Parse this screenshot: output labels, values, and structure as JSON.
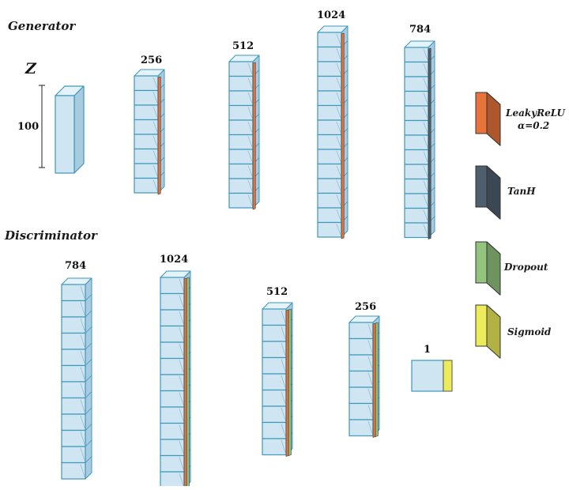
{
  "generator": {
    "title": "Generator",
    "input_symbol": "Z",
    "input_size": "100",
    "layers": [
      {
        "label": "256",
        "activation": "LeakyReLU"
      },
      {
        "label": "512",
        "activation": "LeakyReLU"
      },
      {
        "label": "1024",
        "activation": "LeakyReLU"
      },
      {
        "label": "784",
        "activation": "TanH"
      }
    ]
  },
  "discriminator": {
    "title": "Discriminator",
    "layers": [
      {
        "label": "784",
        "activation": "none"
      },
      {
        "label": "1024",
        "activation": "LeakyReLU+Dropout"
      },
      {
        "label": "512",
        "activation": "LeakyReLU+Dropout"
      },
      {
        "label": "256",
        "activation": "LeakyReLU+Dropout"
      },
      {
        "label": "1",
        "activation": "Sigmoid"
      }
    ]
  },
  "legend": [
    {
      "key": "leakyrelu",
      "label": "LeakyReLU",
      "sublabel": "α=0.2",
      "color": "#e8743b"
    },
    {
      "key": "tanh",
      "label": "TanH",
      "color": "#4f5f6e"
    },
    {
      "key": "dropout",
      "label": "Dropout",
      "color": "#93c47d"
    },
    {
      "key": "sigmoid",
      "label": "Sigmoid",
      "color": "#ecec5a"
    }
  ],
  "colors": {
    "block_face": "#cfe6f2",
    "block_side": "#a9cbe0",
    "block_top": "#e4f2f9",
    "block_edge": "#3f97bb"
  }
}
